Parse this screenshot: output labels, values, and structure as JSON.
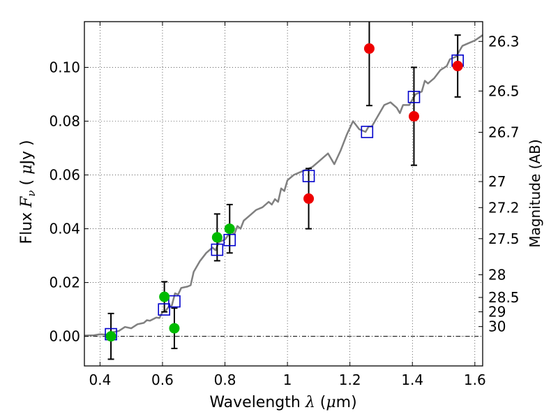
{
  "chart_data": {
    "type": "scatter",
    "title": "",
    "xlabel_prefix": "Wavelength  ",
    "xlabel_symbol": "λ",
    "xlabel_unit_open": " (",
    "xlabel_unit_mu": "μ",
    "xlabel_unit_close": "m)",
    "ylabel_prefix": "Flux  ",
    "ylabel_symbol": "F",
    "ylabel_subscript": "ν",
    "ylabel_unit_open": "  (  ",
    "ylabel_unit_mu": "μ",
    "ylabel_unit_close": "Jy  )",
    "y2label": "Magnitude (AB)",
    "xlim": [
      0.35,
      1.625
    ],
    "ylim": [
      -0.011,
      0.117
    ],
    "grid": true,
    "x_ticks": [
      {
        "value": 0.4,
        "label": "0.4"
      },
      {
        "value": 0.6,
        "label": "0.6"
      },
      {
        "value": 0.8,
        "label": "0.8"
      },
      {
        "value": 1.0,
        "label": "1"
      },
      {
        "value": 1.2,
        "label": "1.2"
      },
      {
        "value": 1.4,
        "label": "1.4"
      },
      {
        "value": 1.6,
        "label": "1.6"
      }
    ],
    "y_ticks": [
      {
        "value": 0.0,
        "label": "0.00"
      },
      {
        "value": 0.02,
        "label": "0.02"
      },
      {
        "value": 0.04,
        "label": "0.04"
      },
      {
        "value": 0.06,
        "label": "0.06"
      },
      {
        "value": 0.08,
        "label": "0.08"
      },
      {
        "value": 0.1,
        "label": "0.10"
      }
    ],
    "y2_ticks": [
      {
        "value": 26.3,
        "label": "26.3"
      },
      {
        "value": 26.5,
        "label": "26.5"
      },
      {
        "value": 26.7,
        "label": "26.7"
      },
      {
        "value": 27.0,
        "label": "27"
      },
      {
        "value": 27.2,
        "label": "27.2"
      },
      {
        "value": 27.5,
        "label": "27.5"
      },
      {
        "value": 28.0,
        "label": "28"
      },
      {
        "value": 28.5,
        "label": "28.5"
      },
      {
        "value": 29.0,
        "label": "29"
      },
      {
        "value": 30.0,
        "label": "30"
      }
    ],
    "series": [
      {
        "name": "model-spectrum",
        "kind": "line",
        "color": "#808080",
        "points": [
          [
            0.35,
            0.0003
          ],
          [
            0.38,
            0.0004
          ],
          [
            0.4,
            0.0008
          ],
          [
            0.42,
            0.0006
          ],
          [
            0.44,
            0.0015
          ],
          [
            0.46,
            0.002
          ],
          [
            0.48,
            0.0035
          ],
          [
            0.5,
            0.003
          ],
          [
            0.52,
            0.0045
          ],
          [
            0.54,
            0.005
          ],
          [
            0.55,
            0.006
          ],
          [
            0.56,
            0.0058
          ],
          [
            0.58,
            0.007
          ],
          [
            0.59,
            0.0068
          ],
          [
            0.6,
            0.009
          ],
          [
            0.61,
            0.0095
          ],
          [
            0.62,
            0.011
          ],
          [
            0.63,
            0.0115
          ],
          [
            0.64,
            0.016
          ],
          [
            0.65,
            0.0155
          ],
          [
            0.66,
            0.018
          ],
          [
            0.68,
            0.0185
          ],
          [
            0.69,
            0.019
          ],
          [
            0.7,
            0.024
          ],
          [
            0.72,
            0.028
          ],
          [
            0.74,
            0.031
          ],
          [
            0.76,
            0.033
          ],
          [
            0.77,
            0.032
          ],
          [
            0.78,
            0.035
          ],
          [
            0.8,
            0.036
          ],
          [
            0.82,
            0.039
          ],
          [
            0.83,
            0.038
          ],
          [
            0.84,
            0.041
          ],
          [
            0.85,
            0.04
          ],
          [
            0.86,
            0.043
          ],
          [
            0.88,
            0.045
          ],
          [
            0.9,
            0.047
          ],
          [
            0.92,
            0.048
          ],
          [
            0.94,
            0.05
          ],
          [
            0.95,
            0.049
          ],
          [
            0.96,
            0.051
          ],
          [
            0.97,
            0.05
          ],
          [
            0.98,
            0.055
          ],
          [
            0.99,
            0.054
          ],
          [
            1.0,
            0.058
          ],
          [
            1.02,
            0.06
          ],
          [
            1.04,
            0.061
          ],
          [
            1.06,
            0.062
          ],
          [
            1.08,
            0.063
          ],
          [
            1.1,
            0.065
          ],
          [
            1.12,
            0.067
          ],
          [
            1.13,
            0.068
          ],
          [
            1.15,
            0.064
          ],
          [
            1.17,
            0.069
          ],
          [
            1.19,
            0.075
          ],
          [
            1.21,
            0.08
          ],
          [
            1.23,
            0.077
          ],
          [
            1.25,
            0.076
          ],
          [
            1.26,
            0.078
          ],
          [
            1.27,
            0.078
          ],
          [
            1.29,
            0.082
          ],
          [
            1.31,
            0.086
          ],
          [
            1.33,
            0.087
          ],
          [
            1.35,
            0.085
          ],
          [
            1.36,
            0.083
          ],
          [
            1.37,
            0.086
          ],
          [
            1.39,
            0.086
          ],
          [
            1.41,
            0.09
          ],
          [
            1.43,
            0.091
          ],
          [
            1.44,
            0.095
          ],
          [
            1.45,
            0.094
          ],
          [
            1.47,
            0.096
          ],
          [
            1.49,
            0.099
          ],
          [
            1.51,
            0.1005
          ],
          [
            1.52,
            0.103
          ],
          [
            1.54,
            0.104
          ],
          [
            1.55,
            0.106
          ],
          [
            1.56,
            0.108
          ],
          [
            1.58,
            0.109
          ],
          [
            1.6,
            0.11
          ],
          [
            1.625,
            0.112
          ]
        ]
      },
      {
        "name": "model-bandpass",
        "kind": "square",
        "color": "#0000cc",
        "points": [
          [
            0.435,
            0.0008
          ],
          [
            0.605,
            0.01
          ],
          [
            0.638,
            0.013
          ],
          [
            0.775,
            0.0322
          ],
          [
            0.815,
            0.0358
          ],
          [
            1.068,
            0.0596
          ],
          [
            1.255,
            0.076
          ],
          [
            1.405,
            0.089
          ],
          [
            1.545,
            0.1025
          ]
        ]
      },
      {
        "name": "green-photometry",
        "kind": "circle",
        "color": "#00bb00",
        "points": [
          {
            "x": 0.435,
            "y": 0.0,
            "err": 0.0085
          },
          {
            "x": 0.606,
            "y": 0.0147,
            "err": 0.0056
          },
          {
            "x": 0.638,
            "y": 0.003,
            "err": 0.0075
          },
          {
            "x": 0.775,
            "y": 0.0368,
            "err": 0.0087
          },
          {
            "x": 0.815,
            "y": 0.04,
            "err": 0.009
          }
        ]
      },
      {
        "name": "red-photometry",
        "kind": "circle",
        "color": "#ee0000",
        "points": [
          {
            "x": 1.068,
            "y": 0.0512,
            "err": 0.0112
          },
          {
            "x": 1.262,
            "y": 0.107,
            "err": 0.0212
          },
          {
            "x": 1.405,
            "y": 0.0818,
            "err": 0.0182
          },
          {
            "x": 1.545,
            "y": 0.1005,
            "err": 0.0115
          }
        ]
      }
    ]
  }
}
